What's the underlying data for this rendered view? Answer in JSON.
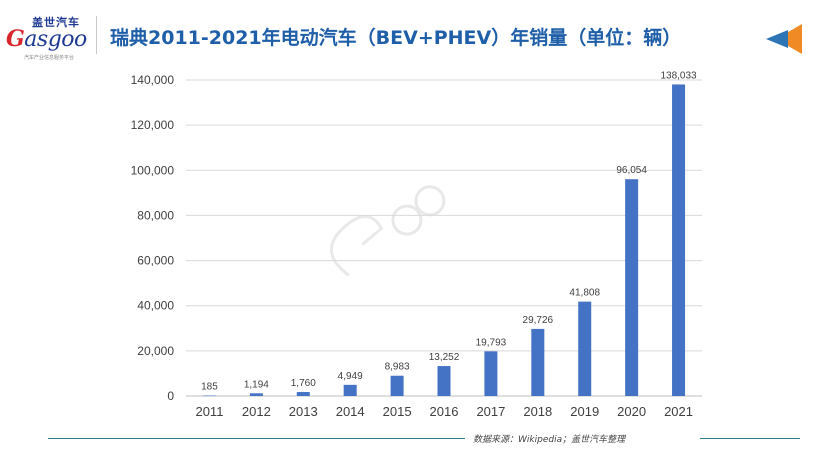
{
  "header": {
    "logo_cn": "盖世汽车",
    "logo_en_first": "G",
    "logo_en_rest": "asgoo",
    "logo_sub": "汽车产业信息服务平台",
    "title": "瑞典2011-2021年电动汽车（BEV+PHEV）年销量（单位：辆）"
  },
  "footer": {
    "source": "数据来源：Wikipedia；盖世汽车整理"
  },
  "colors": {
    "bar": "#4472c4",
    "title": "#1f5ea8",
    "arrow_orange": "#f08a24",
    "arrow_blue": "#2e75b6"
  },
  "chart_data": {
    "type": "bar",
    "title": "瑞典2011-2021年电动汽车（BEV+PHEV）年销量（单位：辆）",
    "categories": [
      "2011",
      "2012",
      "2013",
      "2014",
      "2015",
      "2016",
      "2017",
      "2018",
      "2019",
      "2020",
      "2021"
    ],
    "values": [
      185,
      1194,
      1760,
      4949,
      8983,
      13252,
      19793,
      29726,
      41808,
      96054,
      138033
    ],
    "value_labels": [
      "185",
      "1,194",
      "1,760",
      "4,949",
      "8,983",
      "13,252",
      "19,793",
      "29,726",
      "41,808",
      "96,054",
      "138,033"
    ],
    "yticks": [
      0,
      20000,
      40000,
      60000,
      80000,
      100000,
      120000,
      140000
    ],
    "ytick_labels": [
      "0",
      "20,000",
      "40,000",
      "60,000",
      "80,000",
      "100,000",
      "120,000",
      "140,000"
    ],
    "ylim": [
      0,
      140000
    ],
    "xlabel": "",
    "ylabel": "",
    "grid": true
  }
}
